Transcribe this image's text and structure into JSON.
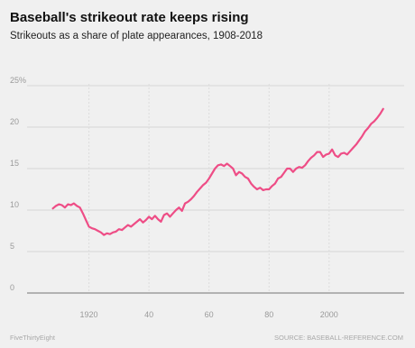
{
  "chart_data": {
    "type": "line",
    "title": "Baseball's strikeout rate keeps rising",
    "subtitle": "Strikeouts as a share of plate appearances, 1908-2018",
    "xlabel": "",
    "ylabel": "",
    "xlim": [
      1900,
      2025
    ],
    "ylim": [
      0,
      25
    ],
    "grid": true,
    "legend": "none",
    "line_color": "#ee4d86",
    "yticks": [
      {
        "value": 0,
        "label": "0"
      },
      {
        "value": 5,
        "label": "5"
      },
      {
        "value": 10,
        "label": "10"
      },
      {
        "value": 15,
        "label": "15"
      },
      {
        "value": 20,
        "label": "20"
      },
      {
        "value": 25,
        "label": "25%"
      }
    ],
    "xticks": [
      {
        "value": 1920,
        "label": "1920"
      },
      {
        "value": 1940,
        "label": "40"
      },
      {
        "value": 1960,
        "label": "60"
      },
      {
        "value": 1980,
        "label": "80"
      },
      {
        "value": 2000,
        "label": "2000"
      }
    ],
    "x": [
      1908,
      1909,
      1910,
      1911,
      1912,
      1913,
      1914,
      1915,
      1916,
      1917,
      1918,
      1919,
      1920,
      1921,
      1922,
      1923,
      1924,
      1925,
      1926,
      1927,
      1928,
      1929,
      1930,
      1931,
      1932,
      1933,
      1934,
      1935,
      1936,
      1937,
      1938,
      1939,
      1940,
      1941,
      1942,
      1943,
      1944,
      1945,
      1946,
      1947,
      1948,
      1949,
      1950,
      1951,
      1952,
      1953,
      1954,
      1955,
      1956,
      1957,
      1958,
      1959,
      1960,
      1961,
      1962,
      1963,
      1964,
      1965,
      1966,
      1967,
      1968,
      1969,
      1970,
      1971,
      1972,
      1973,
      1974,
      1975,
      1976,
      1977,
      1978,
      1979,
      1980,
      1981,
      1982,
      1983,
      1984,
      1985,
      1986,
      1987,
      1988,
      1989,
      1990,
      1991,
      1992,
      1993,
      1994,
      1995,
      1996,
      1997,
      1998,
      1999,
      2000,
      2001,
      2002,
      2003,
      2004,
      2005,
      2006,
      2007,
      2008,
      2009,
      2010,
      2011,
      2012,
      2013,
      2014,
      2015,
      2016,
      2017,
      2018
    ],
    "series": [
      {
        "values": [
          10.2,
          10.5,
          10.7,
          10.6,
          10.3,
          10.7,
          10.6,
          10.8,
          10.5,
          10.3,
          9.6,
          8.8,
          8.0,
          7.8,
          7.7,
          7.5,
          7.3,
          7.0,
          7.2,
          7.1,
          7.3,
          7.4,
          7.7,
          7.6,
          7.9,
          8.2,
          8.0,
          8.3,
          8.6,
          8.9,
          8.5,
          8.8,
          9.2,
          8.9,
          9.3,
          8.9,
          8.6,
          9.4,
          9.6,
          9.2,
          9.6,
          10.0,
          10.3,
          9.9,
          10.8,
          11.0,
          11.3,
          11.7,
          12.2,
          12.6,
          13.0,
          13.3,
          13.8,
          14.4,
          15.0,
          15.4,
          15.5,
          15.3,
          15.6,
          15.3,
          15.0,
          14.2,
          14.6,
          14.4,
          14.0,
          13.8,
          13.2,
          12.8,
          12.5,
          12.7,
          12.4,
          12.5,
          12.5,
          12.9,
          13.2,
          13.8,
          14.0,
          14.5,
          15.0,
          15.0,
          14.6,
          15.0,
          15.2,
          15.1,
          15.4,
          15.9,
          16.3,
          16.6,
          17.0,
          17.0,
          16.4,
          16.7,
          16.8,
          17.3,
          16.6,
          16.4,
          16.8,
          16.9,
          16.7,
          17.1,
          17.5,
          17.9,
          18.4,
          18.9,
          19.5,
          19.9,
          20.4,
          20.7,
          21.1,
          21.6,
          22.2
        ]
      }
    ]
  },
  "footer": {
    "left": "FiveThirtyEight",
    "right": "SOURCE: BASEBALL-REFERENCE.COM"
  }
}
